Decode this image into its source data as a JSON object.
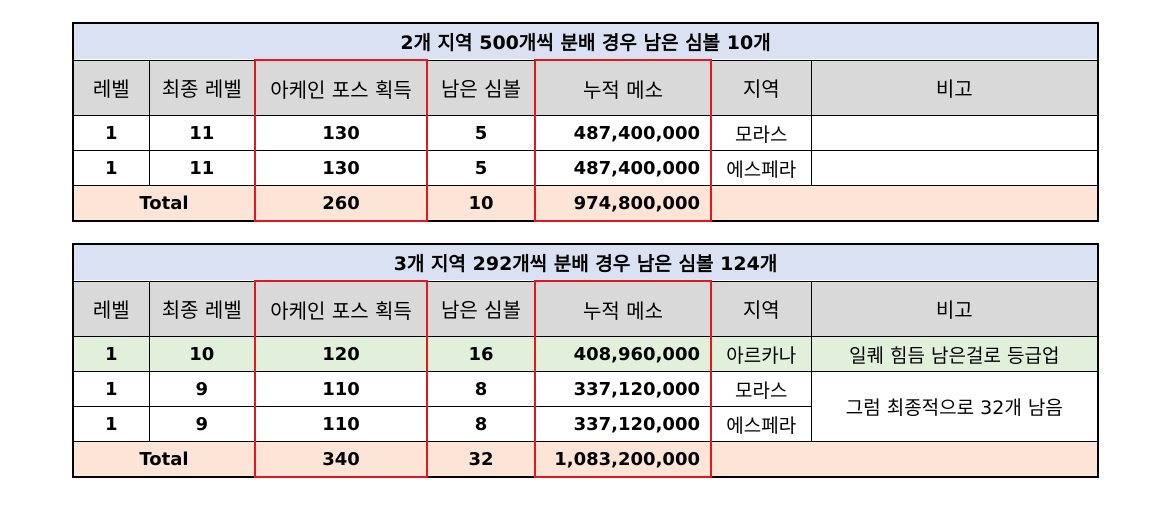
{
  "headers": [
    "레벨",
    "최종 레벨",
    "아케인 포스 획득",
    "남은 심볼",
    "누적 메소",
    "지역",
    "비고"
  ],
  "table1": {
    "title": "2개 지역 500개씩 분배 경우 남은 심볼 10개",
    "rows": [
      {
        "level": "1",
        "final_level": "11",
        "arcane_force": "130",
        "remaining": "5",
        "meso": "487,400,000",
        "region": "모라스",
        "note": ""
      },
      {
        "level": "1",
        "final_level": "11",
        "arcane_force": "130",
        "remaining": "5",
        "meso": "487,400,000",
        "region": "에스페라",
        "note": ""
      }
    ],
    "total": {
      "label": "Total",
      "arcane_force": "260",
      "remaining": "10",
      "meso": "974,800,000"
    }
  },
  "table2": {
    "title": "3개 지역 292개씩 분배 경우 남은 심볼 124개",
    "rows": [
      {
        "level": "1",
        "final_level": "10",
        "arcane_force": "120",
        "remaining": "16",
        "meso": "408,960,000",
        "region": "아르카나",
        "note": "일퀘 힘듬 남은걸로 등급업"
      },
      {
        "level": "1",
        "final_level": "9",
        "arcane_force": "110",
        "remaining": "8",
        "meso": "337,120,000",
        "region": "모라스",
        "note": "그럼 최종적으로 32개 남음"
      },
      {
        "level": "1",
        "final_level": "9",
        "arcane_force": "110",
        "remaining": "8",
        "meso": "337,120,000",
        "region": "에스페라"
      }
    ],
    "total": {
      "label": "Total",
      "arcane_force": "340",
      "remaining": "32",
      "meso": "1,083,200,000"
    }
  },
  "colors": {
    "title_bg": "#d9e1f2",
    "header_bg": "#d9d9d9",
    "highlight_row_bg": "#e2efda",
    "total_bg": "#fce4d6",
    "highlight_border": "#e0191e"
  }
}
